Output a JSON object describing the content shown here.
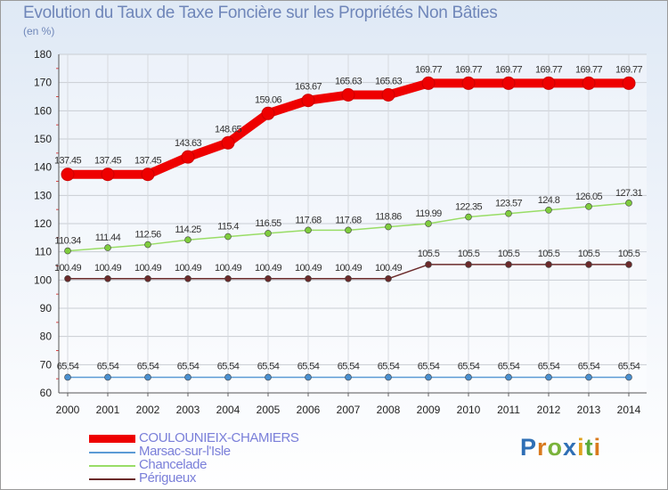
{
  "title": "Evolution du Taux de Taxe Foncière sur les Propriétés Non Bâties",
  "subtitle": "(en %)",
  "logo": {
    "text": "Proxiti"
  },
  "chart_data": {
    "type": "line",
    "title": "Evolution du Taux de Taxe Foncière sur les Propriétés Non Bâties",
    "ylabel": "(en %)",
    "xlabel": "",
    "ylim": [
      60,
      180
    ],
    "yticks": [
      60,
      70,
      80,
      90,
      100,
      110,
      120,
      130,
      140,
      150,
      160,
      170,
      180
    ],
    "x": [
      "2000",
      "2001",
      "2002",
      "2003",
      "2004",
      "2005",
      "2006",
      "2007",
      "2008",
      "2009",
      "2010",
      "2011",
      "2012",
      "2013",
      "2014"
    ],
    "grid": true,
    "legend": "bottom-left",
    "series": [
      {
        "name": "COULOUNIEIX-CHAMIERS",
        "color": "#ee0000",
        "values": [
          137.45,
          137.45,
          137.45,
          143.63,
          148.65,
          159.06,
          163.67,
          165.63,
          165.63,
          169.77,
          169.77,
          169.77,
          169.77,
          169.77,
          169.77
        ],
        "labels": [
          "137.45",
          "137.45",
          "137.45",
          "143.63",
          "148.65",
          "159.06",
          "163.67",
          "165.63",
          "165.63",
          "169.77",
          "169.77",
          "169.77",
          "169.77",
          "169.77",
          "169.77"
        ]
      },
      {
        "name": "Marsac-sur-l'Isle",
        "color": "#5b9bd5",
        "values": [
          65.54,
          65.54,
          65.54,
          65.54,
          65.54,
          65.54,
          65.54,
          65.54,
          65.54,
          65.54,
          65.54,
          65.54,
          65.54,
          65.54,
          65.54
        ],
        "labels": [
          "65.54",
          "65.54",
          "65.54",
          "65.54",
          "65.54",
          "65.54",
          "65.54",
          "65.54",
          "65.54",
          "65.54",
          "65.54",
          "65.54",
          "65.54",
          "65.54",
          "65.54"
        ]
      },
      {
        "name": "Chancelade",
        "color": "#99dd66",
        "values": [
          110.34,
          111.44,
          112.56,
          114.25,
          115.4,
          116.55,
          117.68,
          117.68,
          118.86,
          119.99,
          122.35,
          123.57,
          124.8,
          126.05,
          127.31
        ],
        "labels": [
          "110.34",
          "111.44",
          "112.56",
          "114.25",
          "115.4",
          "116.55",
          "117.68",
          "117.68",
          "118.86",
          "119.99",
          "122.35",
          "123.57",
          "124.8",
          "126.05",
          "127.31"
        ]
      },
      {
        "name": "Périgueux",
        "color": "#6b2a2a",
        "values": [
          100.49,
          100.49,
          100.49,
          100.49,
          100.49,
          100.49,
          100.49,
          100.49,
          100.49,
          105.5,
          105.5,
          105.5,
          105.5,
          105.5,
          105.5
        ],
        "labels": [
          "100.49",
          "100.49",
          "100.49",
          "100.49",
          "100.49",
          "100.49",
          "100.49",
          "100.49",
          "100.49",
          "105.5",
          "105.5",
          "105.5",
          "105.5",
          "105.5",
          "105.5"
        ]
      }
    ]
  }
}
